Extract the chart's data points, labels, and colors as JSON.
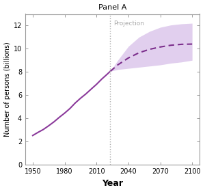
{
  "title": "Panel A",
  "xlabel": "Year",
  "ylabel": "Number of persons (billions)",
  "projection_label": "Projection",
  "projection_year": 2023,
  "xlim": [
    1943,
    2107
  ],
  "ylim": [
    0,
    13
  ],
  "xticks": [
    1950,
    1980,
    2010,
    2040,
    2070,
    2100
  ],
  "yticks": [
    0,
    2,
    4,
    6,
    8,
    10,
    12
  ],
  "line_color": "#8B3A9B",
  "shade_color": "#C9A8E0",
  "dashed_color": "#7B2D8B",
  "dotted_line_color": "#aaaaaa",
  "projection_text_color": "#aaaaaa",
  "historical_years": [
    1950,
    1955,
    1960,
    1965,
    1970,
    1975,
    1980,
    1985,
    1990,
    1995,
    2000,
    2005,
    2010,
    2015,
    2020,
    2023
  ],
  "historical_values": [
    2.5,
    2.77,
    3.02,
    3.34,
    3.68,
    4.07,
    4.43,
    4.83,
    5.31,
    5.72,
    6.09,
    6.51,
    6.92,
    7.38,
    7.79,
    8.05
  ],
  "projection_years": [
    2023,
    2030,
    2040,
    2050,
    2060,
    2070,
    2080,
    2090,
    2100
  ],
  "projection_median": [
    8.05,
    8.6,
    9.2,
    9.65,
    9.95,
    10.15,
    10.3,
    10.38,
    10.4
  ],
  "projection_upper": [
    8.05,
    9.0,
    10.2,
    11.0,
    11.5,
    11.85,
    12.05,
    12.15,
    12.2
  ],
  "projection_lower": [
    8.05,
    8.2,
    8.3,
    8.4,
    8.5,
    8.6,
    8.75,
    8.85,
    9.0
  ],
  "background_color": "#ffffff",
  "axes_edge_color": "#999999",
  "spine_linewidth": 0.8,
  "tick_labelsize": 7,
  "xlabel_fontsize": 9,
  "ylabel_fontsize": 7,
  "title_fontsize": 8
}
